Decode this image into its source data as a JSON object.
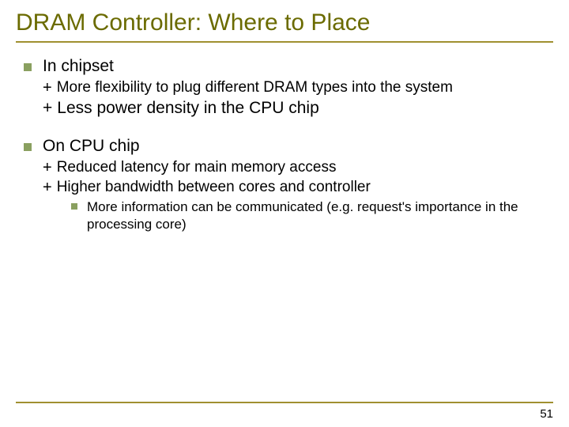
{
  "title": "DRAM Controller: Where to Place",
  "section1": {
    "heading": "In chipset",
    "points": [
      "More flexibility to plug different DRAM types into the system",
      "Less power density in the CPU chip"
    ]
  },
  "section2": {
    "heading": "On CPU chip",
    "points": [
      "Reduced latency for main memory access",
      "Higher bandwidth between cores and controller"
    ],
    "nested": "More information can be communicated (e.g. request's importance in the processing core)"
  },
  "page_number": "51",
  "colors": {
    "title_color": "#6b6b00",
    "rule_color": "#a09030",
    "bullet_color": "#8aa060",
    "background": "#ffffff",
    "text_color": "#000000"
  }
}
